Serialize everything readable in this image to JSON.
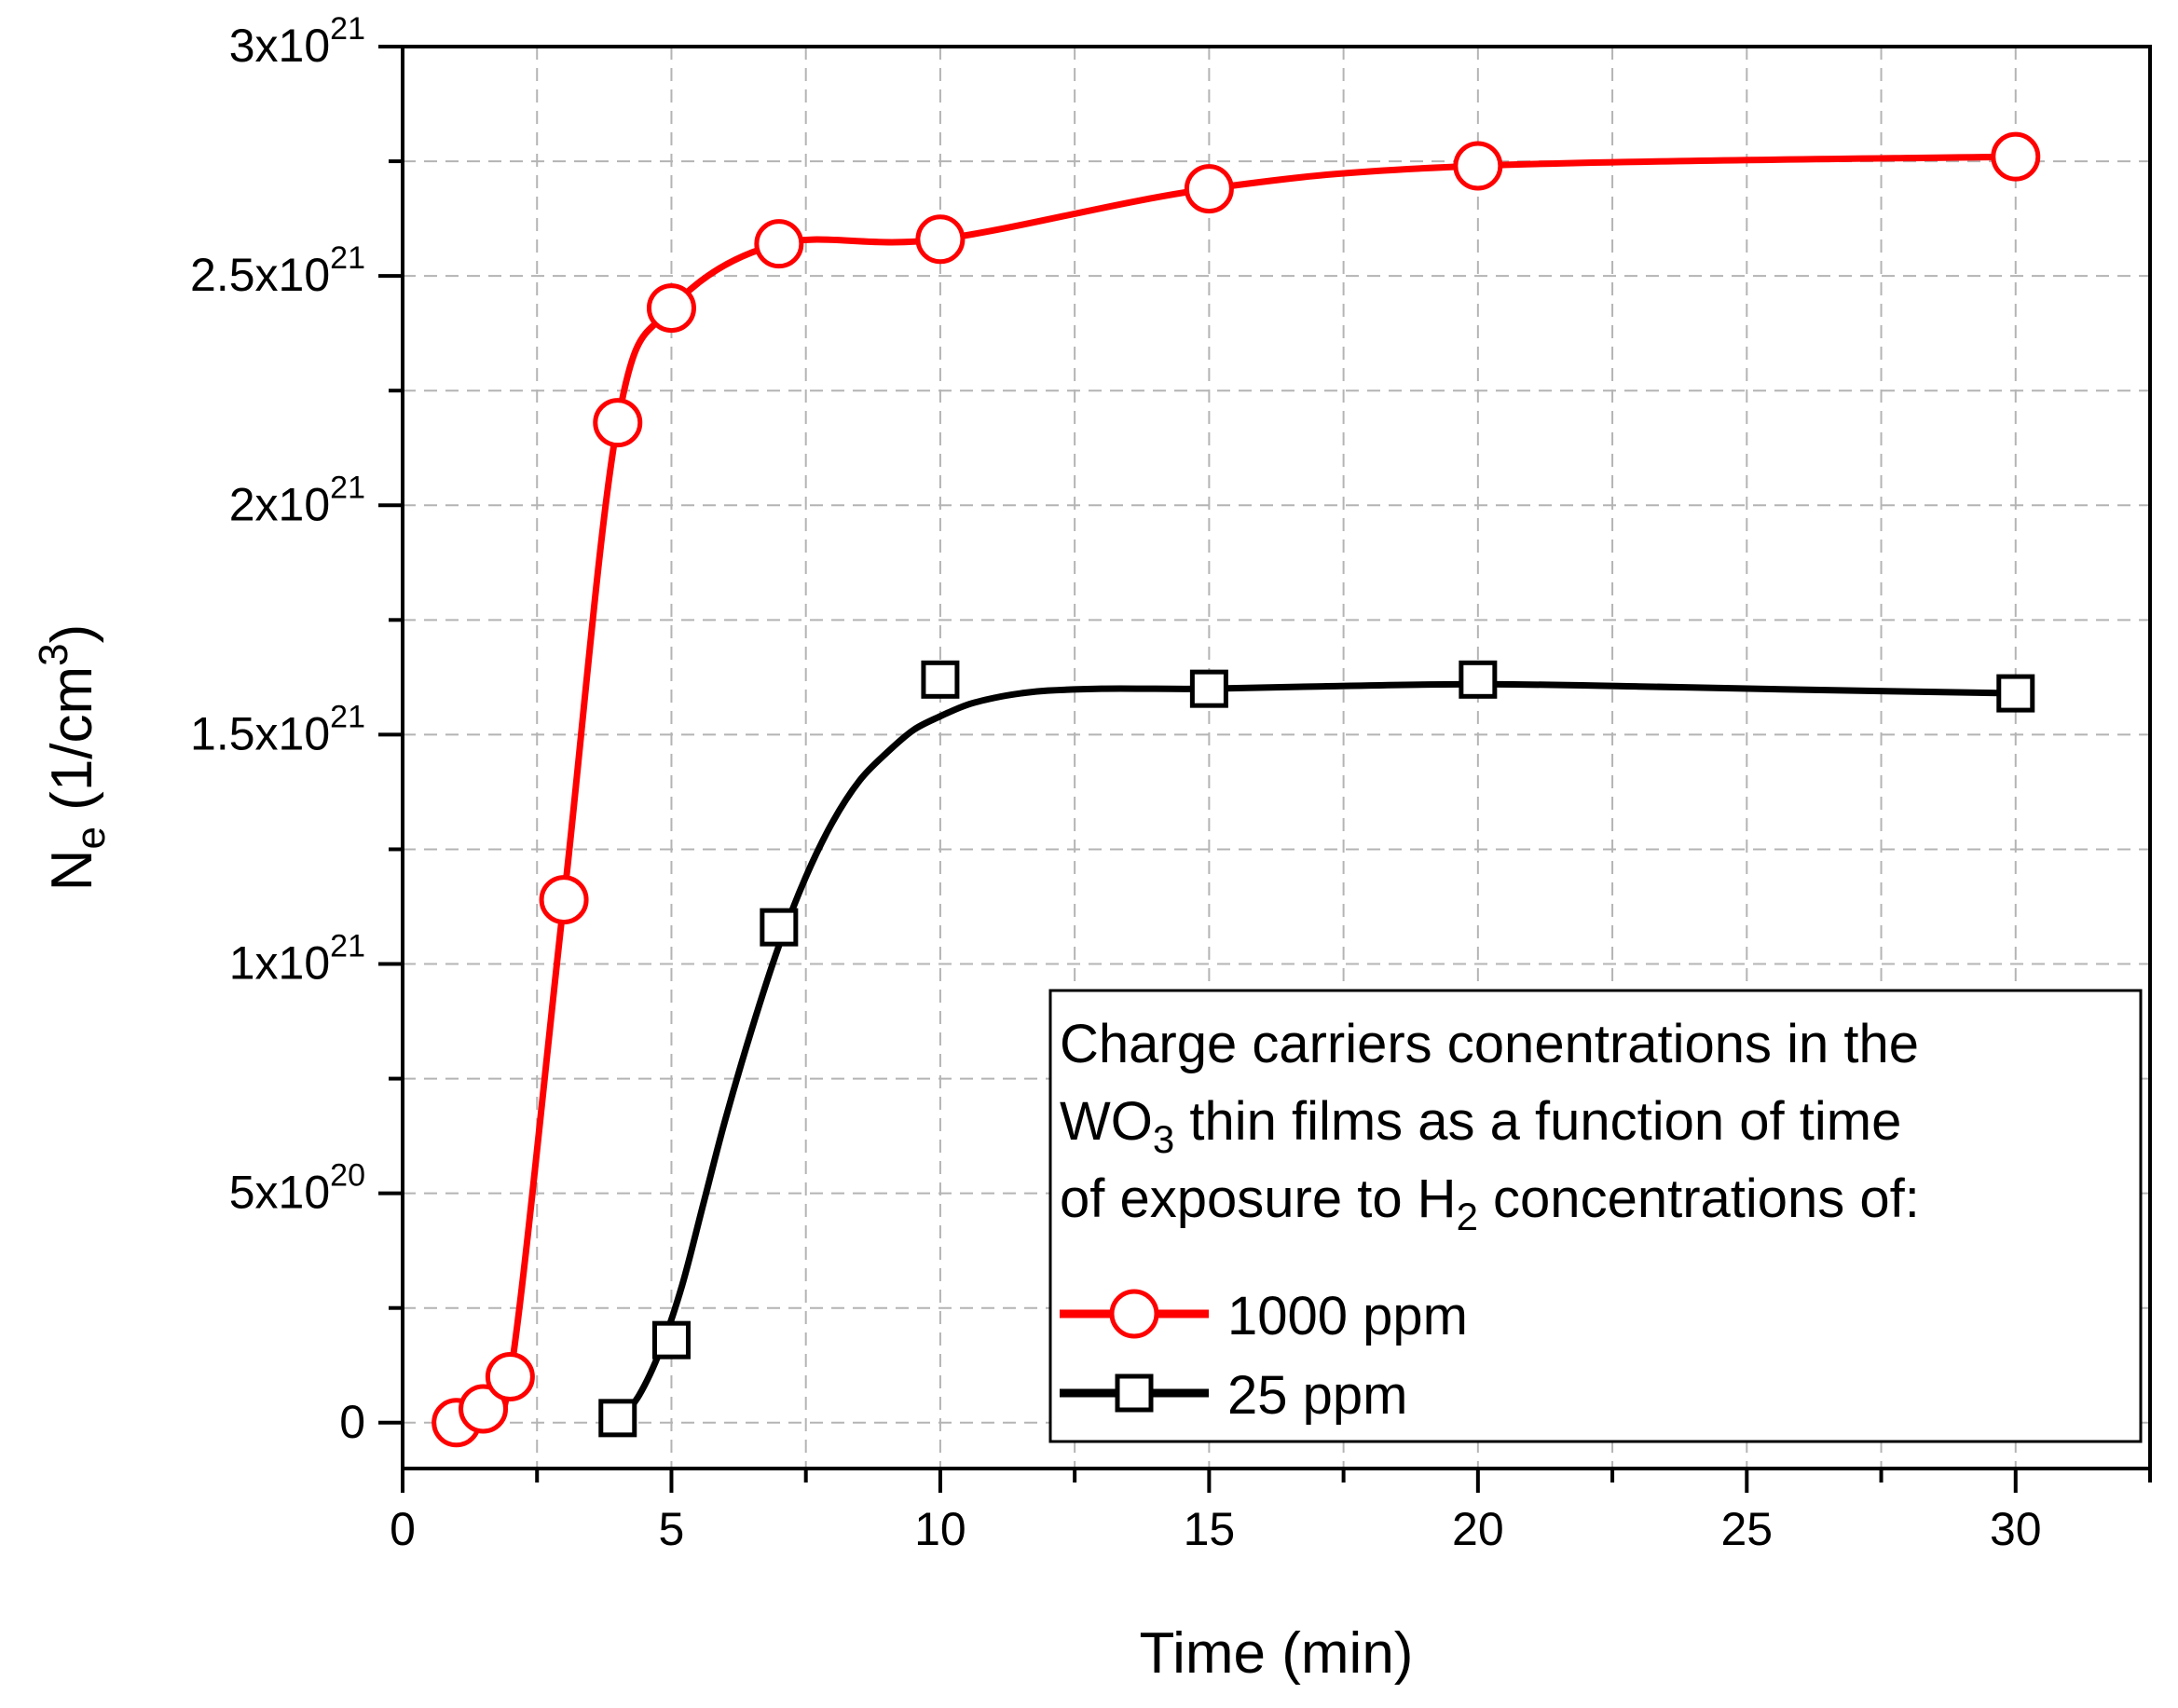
{
  "chart_data": {
    "type": "line",
    "title": "",
    "xlabel": "Time (min)",
    "ylabel": {
      "base": "N",
      "sub": "e",
      "unit_open": " (1/cm",
      "unit_sup": "3",
      "unit_close": ")"
    },
    "xlim": [
      0,
      32.5
    ],
    "ylim": [
      -1e+20,
      3e+21
    ],
    "x_ticks": [
      {
        "value": 0,
        "label": "0"
      },
      {
        "value": 5,
        "label": "5"
      },
      {
        "value": 10,
        "label": "10"
      },
      {
        "value": 15,
        "label": "15"
      },
      {
        "value": 20,
        "label": "20"
      },
      {
        "value": 25,
        "label": "25"
      },
      {
        "value": 30,
        "label": "30"
      }
    ],
    "y_ticks": [
      {
        "value": 0,
        "mantissa": "0",
        "exp": ""
      },
      {
        "value": 5e+20,
        "mantissa": "5x10",
        "exp": "20"
      },
      {
        "value": 1e+21,
        "mantissa": "1x10",
        "exp": "21"
      },
      {
        "value": 1.5e+21,
        "mantissa": "1.5x10",
        "exp": "21"
      },
      {
        "value": 2e+21,
        "mantissa": "2x10",
        "exp": "21"
      },
      {
        "value": 2.5e+21,
        "mantissa": "2.5x10",
        "exp": "21"
      },
      {
        "value": 3e+21,
        "mantissa": "3x10",
        "exp": "21"
      }
    ],
    "grid": true,
    "legend_position": "bottom-right",
    "legend_title": {
      "line1": "Charge carriers conentrations in the",
      "line2_a": "WO",
      "line2_sub": "3",
      "line2_b": " thin films as a function of time",
      "line3_a": "of exposure to H",
      "line3_sub": "2",
      "line3_b": " concentrations of:"
    },
    "series": [
      {
        "name": "1000 ppm",
        "color": "#ff0000",
        "marker": "circle",
        "x": [
          1,
          1.5,
          2,
          3,
          4,
          5,
          7,
          10,
          15,
          20,
          30
        ],
        "y": [
          0.0,
          3e+19,
          1e+20,
          1.14e+21,
          2.18e+21,
          2.43e+21,
          2.57e+21,
          2.58e+21,
          2.69e+21,
          2.74e+21,
          2.76e+21
        ]
      },
      {
        "name": "25 ppm",
        "color": "#000000",
        "marker": "square",
        "x": [
          4,
          5,
          7,
          10,
          15,
          20,
          30
        ],
        "y": [
          1e+19,
          1.8e+20,
          1.08e+21,
          1.62e+21,
          1.6e+21,
          1.62e+21,
          1.59e+21
        ],
        "fit_x": [
          4,
          4.4,
          4.8,
          5.2,
          5.6,
          6,
          6.5,
          7,
          7.5,
          8,
          8.5,
          9,
          9.5,
          10,
          10.5,
          11,
          11.5,
          12,
          13,
          14,
          15,
          17,
          20,
          23,
          26,
          30
        ],
        "fit_y": [
          0.0,
          6e+19,
          1.6e+20,
          3e+20,
          4.8e+20,
          6.6e+20,
          8.6e+20,
          1.04e+21,
          1.19e+21,
          1.31e+21,
          1.4e+21,
          1.46e+21,
          1.51e+21,
          1.54e+21,
          1.565e+21,
          1.58e+21,
          1.59e+21,
          1.596e+21,
          1.6e+21,
          1.6e+21,
          1.6e+21,
          1.605e+21,
          1.61e+21,
          1.605e+21,
          1.598e+21,
          1.59e+21
        ]
      }
    ]
  }
}
